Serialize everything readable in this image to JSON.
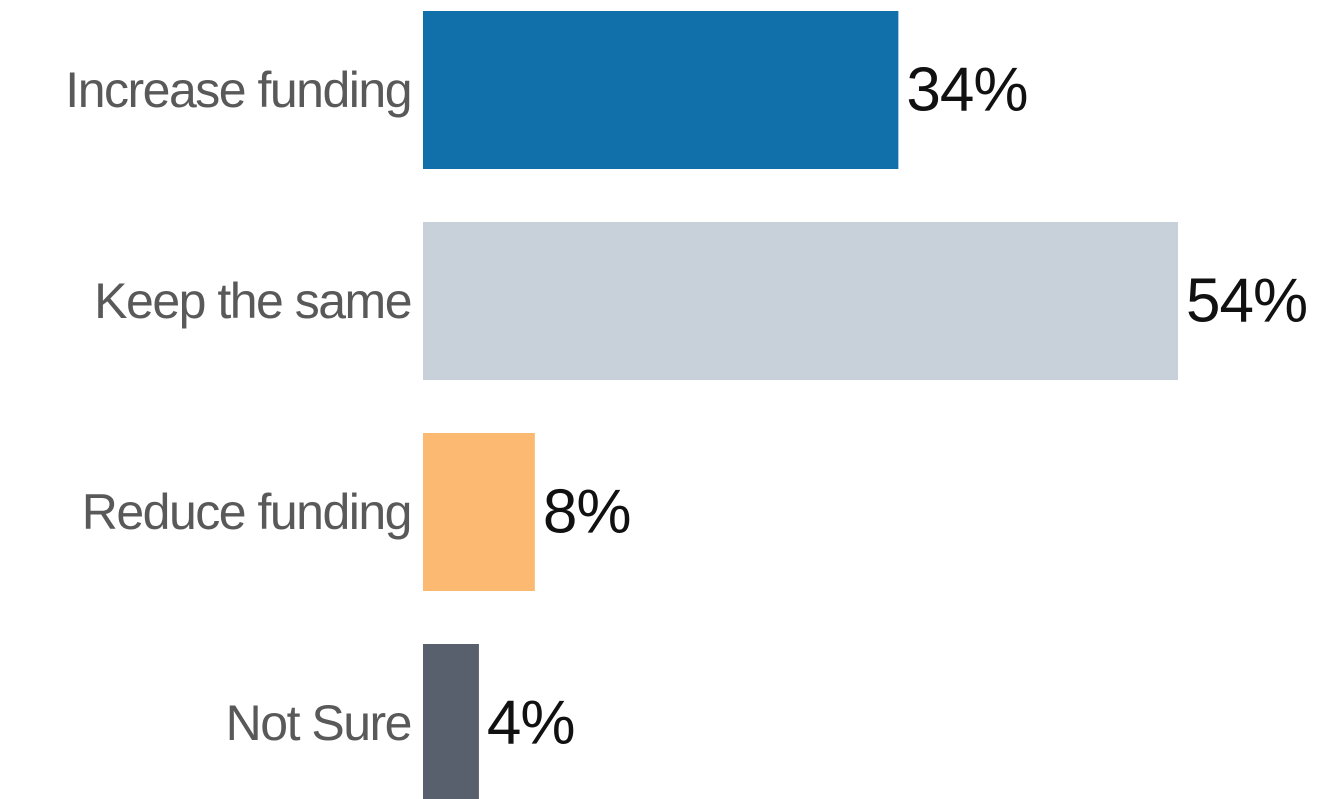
{
  "chart_data": {
    "type": "barh",
    "categories": [
      "Increase funding",
      "Keep the same",
      "Reduce funding",
      "Not Sure"
    ],
    "values": [
      34,
      54,
      8,
      4
    ],
    "value_labels": [
      "34%",
      "54%",
      "8%",
      "4%"
    ],
    "colors": [
      "#1170aa",
      "#c8d0d9",
      "#fcb971",
      "#57606c"
    ],
    "xlim": [
      0,
      54
    ]
  }
}
